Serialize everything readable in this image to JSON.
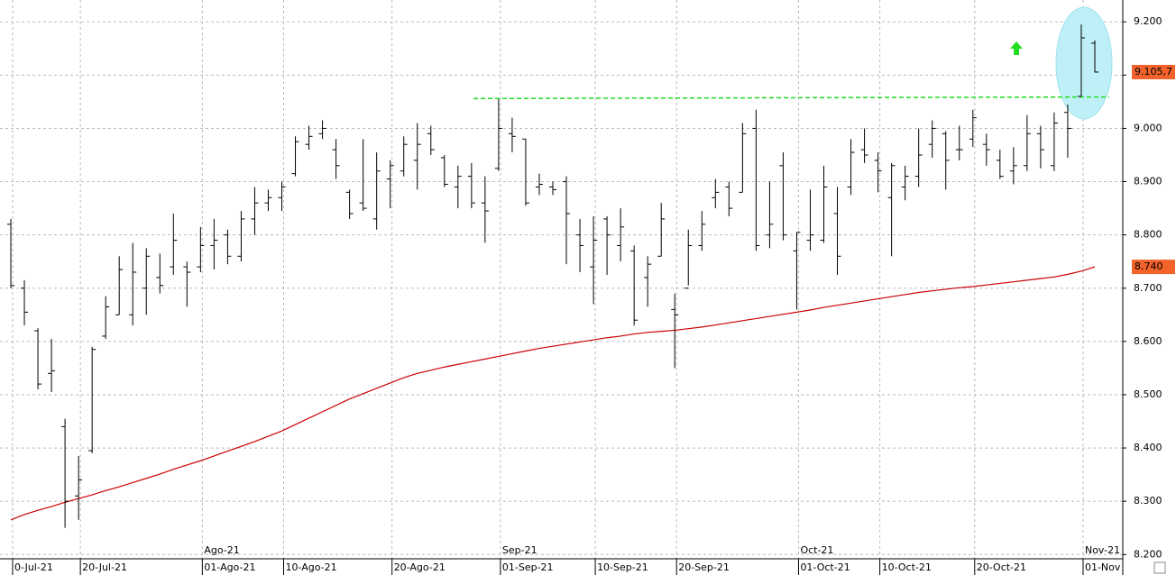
{
  "chart_data": {
    "type": "ohlc",
    "categories": [
      "0-Jul-21",
      null,
      null,
      null,
      null,
      "20-Jul-21",
      null,
      null,
      null,
      null,
      null,
      null,
      null,
      null,
      "01-Ago-21",
      null,
      null,
      null,
      null,
      null,
      "10-Ago-21",
      null,
      null,
      null,
      null,
      null,
      null,
      null,
      "20-Ago-21",
      null,
      null,
      null,
      null,
      null,
      null,
      null,
      "01-Sep-21",
      null,
      null,
      null,
      null,
      null,
      null,
      "10-Sep-21",
      null,
      null,
      null,
      null,
      null,
      "20-Sep-21",
      null,
      null,
      null,
      null,
      null,
      null,
      null,
      null,
      "01-Oct-21",
      null,
      null,
      null,
      null,
      null,
      "10-Oct-21",
      null,
      null,
      null,
      null,
      null,
      null,
      "20-Oct-21",
      null,
      null,
      null,
      null,
      null,
      null,
      null,
      "01-Nov",
      null
    ],
    "months": [
      {
        "label": "Ago-21",
        "at": "01-Ago-21"
      },
      {
        "label": "Sep-21",
        "at": "01-Sep-21"
      },
      {
        "label": "Oct-21",
        "at": "01-Oct-21"
      },
      {
        "label": "Nov-21",
        "at": "01-Nov"
      }
    ],
    "color": "#000000",
    "open": [
      8820,
      8700,
      8620,
      8540,
      8440,
      8310,
      8395,
      8610,
      8650,
      8650,
      8700,
      8720,
      8740,
      8740,
      8740,
      8780,
      8800,
      8760,
      8830,
      8860,
      8870,
      8915,
      8970,
      8990,
      8960,
      8880,
      8860,
      8830,
      8905,
      8920,
      8940,
      8990,
      8945,
      8890,
      8910,
      8860,
      8925,
      8990,
      8980,
      8890,
      8890,
      8900,
      8800,
      8740,
      8830,
      8780,
      8770,
      8720,
      8760,
      8660,
      8700,
      8780,
      8870,
      8890,
      8880,
      9000,
      8800,
      8930,
      8770,
      8790,
      8790,
      8840,
      8890,
      8960,
      8940,
      8870,
      8890,
      8910,
      8970,
      8990,
      8960,
      8980,
      8970,
      8940,
      8920,
      8930,
      8990,
      8930,
      9030,
      9060,
      9160
    ],
    "high": [
      8830,
      8715,
      8625,
      8605,
      8455,
      8385,
      8590,
      8685,
      8760,
      8785,
      8775,
      8765,
      8840,
      8750,
      8815,
      8830,
      8810,
      8845,
      8890,
      8885,
      8900,
      8985,
      9005,
      9015,
      8980,
      8885,
      8980,
      8955,
      8940,
      8985,
      9010,
      9005,
      8950,
      8930,
      8935,
      8910,
      9055,
      9020,
      8980,
      8915,
      8900,
      8910,
      8830,
      8835,
      8835,
      8850,
      8780,
      8760,
      8860,
      8690,
      8810,
      8845,
      8905,
      8900,
      9010,
      9035,
      8900,
      8955,
      8805,
      8885,
      8930,
      8890,
      8980,
      9000,
      8955,
      8935,
      8930,
      9000,
      9015,
      8995,
      9005,
      9035,
      8990,
      8960,
      8965,
      9025,
      9005,
      9030,
      9045,
      9195,
      9165
    ],
    "low": [
      8700,
      8630,
      8510,
      8505,
      8250,
      8265,
      8390,
      8605,
      8650,
      8630,
      8650,
      8690,
      8725,
      8665,
      8730,
      8735,
      8745,
      8750,
      8800,
      8845,
      8845,
      8910,
      8960,
      8980,
      8905,
      8830,
      8845,
      8810,
      8850,
      8910,
      8885,
      8950,
      8890,
      8850,
      8850,
      8785,
      8920,
      8955,
      8855,
      8875,
      8875,
      8745,
      8730,
      8670,
      8725,
      8750,
      8630,
      8665,
      8760,
      8550,
      8705,
      8770,
      8850,
      8835,
      8880,
      8770,
      8775,
      8790,
      8660,
      8770,
      8785,
      8725,
      8875,
      8935,
      8880,
      8760,
      8865,
      8890,
      8945,
      8885,
      8940,
      8965,
      8930,
      8905,
      8895,
      8920,
      8925,
      8920,
      8945,
      9060,
      9105
    ],
    "close": [
      8705,
      8655,
      8520,
      8545,
      8300,
      8340,
      8585,
      8665,
      8735,
      8730,
      8760,
      8705,
      8790,
      8730,
      8780,
      8790,
      8760,
      8830,
      8860,
      8870,
      8890,
      8975,
      8985,
      9000,
      8930,
      8840,
      8850,
      8920,
      8930,
      8970,
      8970,
      8960,
      8895,
      8910,
      8860,
      8845,
      9000,
      8985,
      8860,
      8895,
      8885,
      8840,
      8780,
      8790,
      8800,
      8815,
      8640,
      8745,
      8830,
      8650,
      8780,
      8820,
      8880,
      8850,
      8990,
      8780,
      8820,
      8800,
      8805,
      8800,
      8890,
      8760,
      8955,
      8950,
      8920,
      8930,
      8910,
      8950,
      9000,
      8940,
      8960,
      9020,
      8960,
      8910,
      8930,
      8990,
      8960,
      9010,
      9000,
      9170,
      9105.7
    ],
    "close_label": "9.105,7",
    "ma": {
      "color": "#cc0000",
      "label": "8.740",
      "values": [
        8265,
        8275,
        8283,
        8290,
        8298,
        8305,
        8312,
        8320,
        8327,
        8335,
        8343,
        8351,
        8360,
        8368,
        8376,
        8385,
        8394,
        8403,
        8412,
        8422,
        8432,
        8444,
        8456,
        8468,
        8480,
        8492,
        8502,
        8512,
        8522,
        8532,
        8540,
        8546,
        8552,
        8557,
        8562,
        8567,
        8572,
        8577,
        8582,
        8587,
        8591,
        8595,
        8599,
        8603,
        8607,
        8610,
        8614,
        8617,
        8619,
        8621,
        8624,
        8627,
        8631,
        8635,
        8639,
        8643,
        8647,
        8651,
        8655,
        8659,
        8664,
        8668,
        8672,
        8676,
        8680,
        8684,
        8688,
        8692,
        8695,
        8698,
        8701,
        8703,
        8706,
        8709,
        8712,
        8715,
        8718,
        8721,
        8726,
        8732,
        8740
      ]
    },
    "trend_line": {
      "color": "#22dd22",
      "values": [
        9056,
        9059
      ]
    },
    "ylim": [
      8192,
      9241
    ],
    "yticks": [
      {
        "value": 8200,
        "label": "8.200"
      },
      {
        "value": 8300,
        "label": "8.300"
      },
      {
        "value": 8400,
        "label": "8.400"
      },
      {
        "value": 8500,
        "label": "8.500"
      },
      {
        "value": 8600,
        "label": "8.600"
      },
      {
        "value": 8700,
        "label": "8.700"
      },
      {
        "value": 8800,
        "label": "8.800"
      },
      {
        "value": 8900,
        "label": "8.900"
      },
      {
        "value": 9000,
        "label": "9.000"
      },
      {
        "value": 9100,
        "label": "9.100"
      },
      {
        "value": 9200,
        "label": "9.200"
      }
    ],
    "grid": true
  }
}
